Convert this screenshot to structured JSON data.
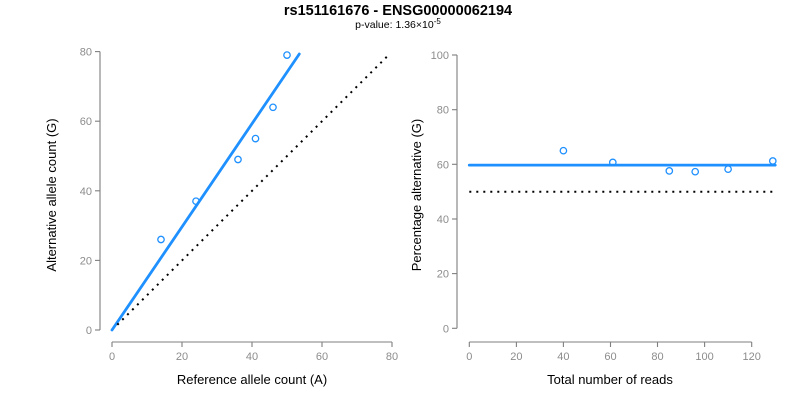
{
  "header": {
    "title": "rs151161676 - ENSG00000062194",
    "subtitle_prefix": "p-value: 1.36×10",
    "subtitle_exponent": "-5"
  },
  "colors": {
    "accent_blue": "#1E90FF",
    "line_black": "#000000",
    "axis_gray": "#7f7f7f",
    "tick_label_gray": "#8c8c8c",
    "subtitle_gray": "#8c8c8c",
    "text_black": "#111111"
  },
  "chart_data": [
    {
      "type": "scatter",
      "name": "allele-counts-scatter",
      "xlabel": "Reference allele count (A)",
      "ylabel": "Alternative allele count (G)",
      "xlim": [
        0,
        80
      ],
      "ylim": [
        0,
        80
      ],
      "xticks": [
        0,
        20,
        40,
        60,
        80
      ],
      "yticks": [
        0,
        20,
        40,
        60,
        80
      ],
      "grid": false,
      "legend": false,
      "points": [
        [
          14,
          26
        ],
        [
          24,
          37
        ],
        [
          36,
          49
        ],
        [
          41,
          55
        ],
        [
          46,
          64
        ],
        [
          50,
          79
        ]
      ],
      "lines": [
        {
          "name": "fit",
          "style": "solid",
          "color": "#1E90FF",
          "x1": 0,
          "y1": 0,
          "x2": 53.5,
          "y2": 79.3
        },
        {
          "name": "identity",
          "style": "dotted",
          "color": "#000000",
          "x1": 1.5,
          "y1": 1.5,
          "x2": 78.5,
          "y2": 78.5
        }
      ]
    },
    {
      "type": "scatter",
      "name": "percentage-vs-reads-scatter",
      "xlabel": "Total number of reads",
      "ylabel": "Percentage alternative (G)",
      "xlim": [
        0,
        130
      ],
      "ylim": [
        0,
        100
      ],
      "xticks": [
        0,
        20,
        40,
        60,
        80,
        100,
        120
      ],
      "yticks": [
        0,
        20,
        40,
        60,
        80,
        100
      ],
      "grid": false,
      "legend": false,
      "points": [
        [
          40,
          65
        ],
        [
          61,
          60.7
        ],
        [
          85,
          57.6
        ],
        [
          96,
          57.3
        ],
        [
          110,
          58.2
        ],
        [
          129,
          61.2
        ]
      ],
      "lines": [
        {
          "name": "fit",
          "style": "solid",
          "color": "#1E90FF",
          "x1": 0,
          "y1": 59.7,
          "x2": 130,
          "y2": 59.7
        },
        {
          "name": "null",
          "style": "dotted",
          "color": "#000000",
          "x1": 0,
          "y1": 50,
          "x2": 129,
          "y2": 50
        }
      ]
    }
  ]
}
